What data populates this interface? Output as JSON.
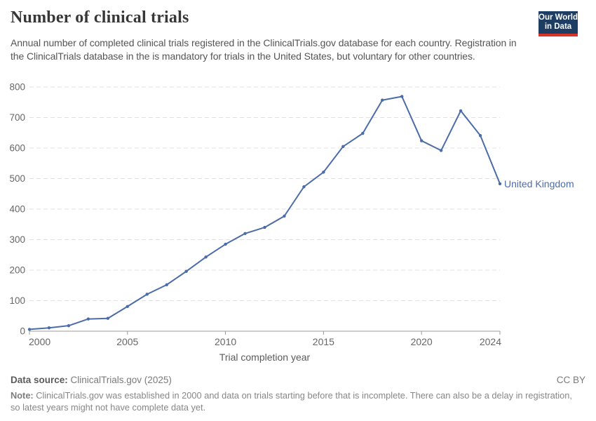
{
  "header": {
    "title": "Number of clinical trials",
    "subtitle": "Annual number of completed clinical trials registered in the ClinicalTrials.gov database for each country. Registration in the ClinicalTrials database in the is mandatory for trials in the United States, but voluntary for other countries.",
    "logo": {
      "line1": "Our World",
      "line2": "in Data"
    }
  },
  "chart_data": {
    "type": "line",
    "title": "Number of clinical trials",
    "xlabel": "Trial completion year",
    "ylabel": "",
    "x": [
      2000,
      2001,
      2002,
      2003,
      2004,
      2005,
      2006,
      2007,
      2008,
      2009,
      2010,
      2011,
      2012,
      2013,
      2014,
      2015,
      2016,
      2017,
      2018,
      2019,
      2020,
      2021,
      2022,
      2023,
      2024
    ],
    "series": [
      {
        "name": "United Kingdom",
        "color": "#4c6ca9",
        "values": [
          6,
          11,
          18,
          40,
          42,
          81,
          121,
          152,
          196,
          243,
          285,
          320,
          340,
          377,
          473,
          521,
          605,
          648,
          757,
          769,
          624,
          592,
          722,
          641,
          483
        ]
      }
    ],
    "ylim": [
      0,
      800
    ],
    "yticks": [
      0,
      100,
      200,
      300,
      400,
      500,
      600,
      700,
      800
    ],
    "xticks": [
      2000,
      2005,
      2010,
      2015,
      2020,
      2024
    ],
    "grid": "horizontal-dashed",
    "legend": "series-end-label"
  },
  "footer": {
    "data_source_label": "Data source:",
    "data_source_value": " ClinicalTrials.gov (2025)",
    "license": "CC BY",
    "note_label": "Note:",
    "note_text": " ClinicalTrials.gov was established in 2000 and data on trials starting before that is incomplete. There can also be a delay in registration, so latest years might not have complete data yet."
  },
  "colors": {
    "accent_line": "#4c6ca9",
    "logo_navy": "#1d3d63",
    "logo_red": "#d8352a",
    "gridline": "#e0e0e0",
    "axis": "#9b9b9b",
    "tick_text": "#666666",
    "axis_title_text": "#5b5b5b"
  }
}
